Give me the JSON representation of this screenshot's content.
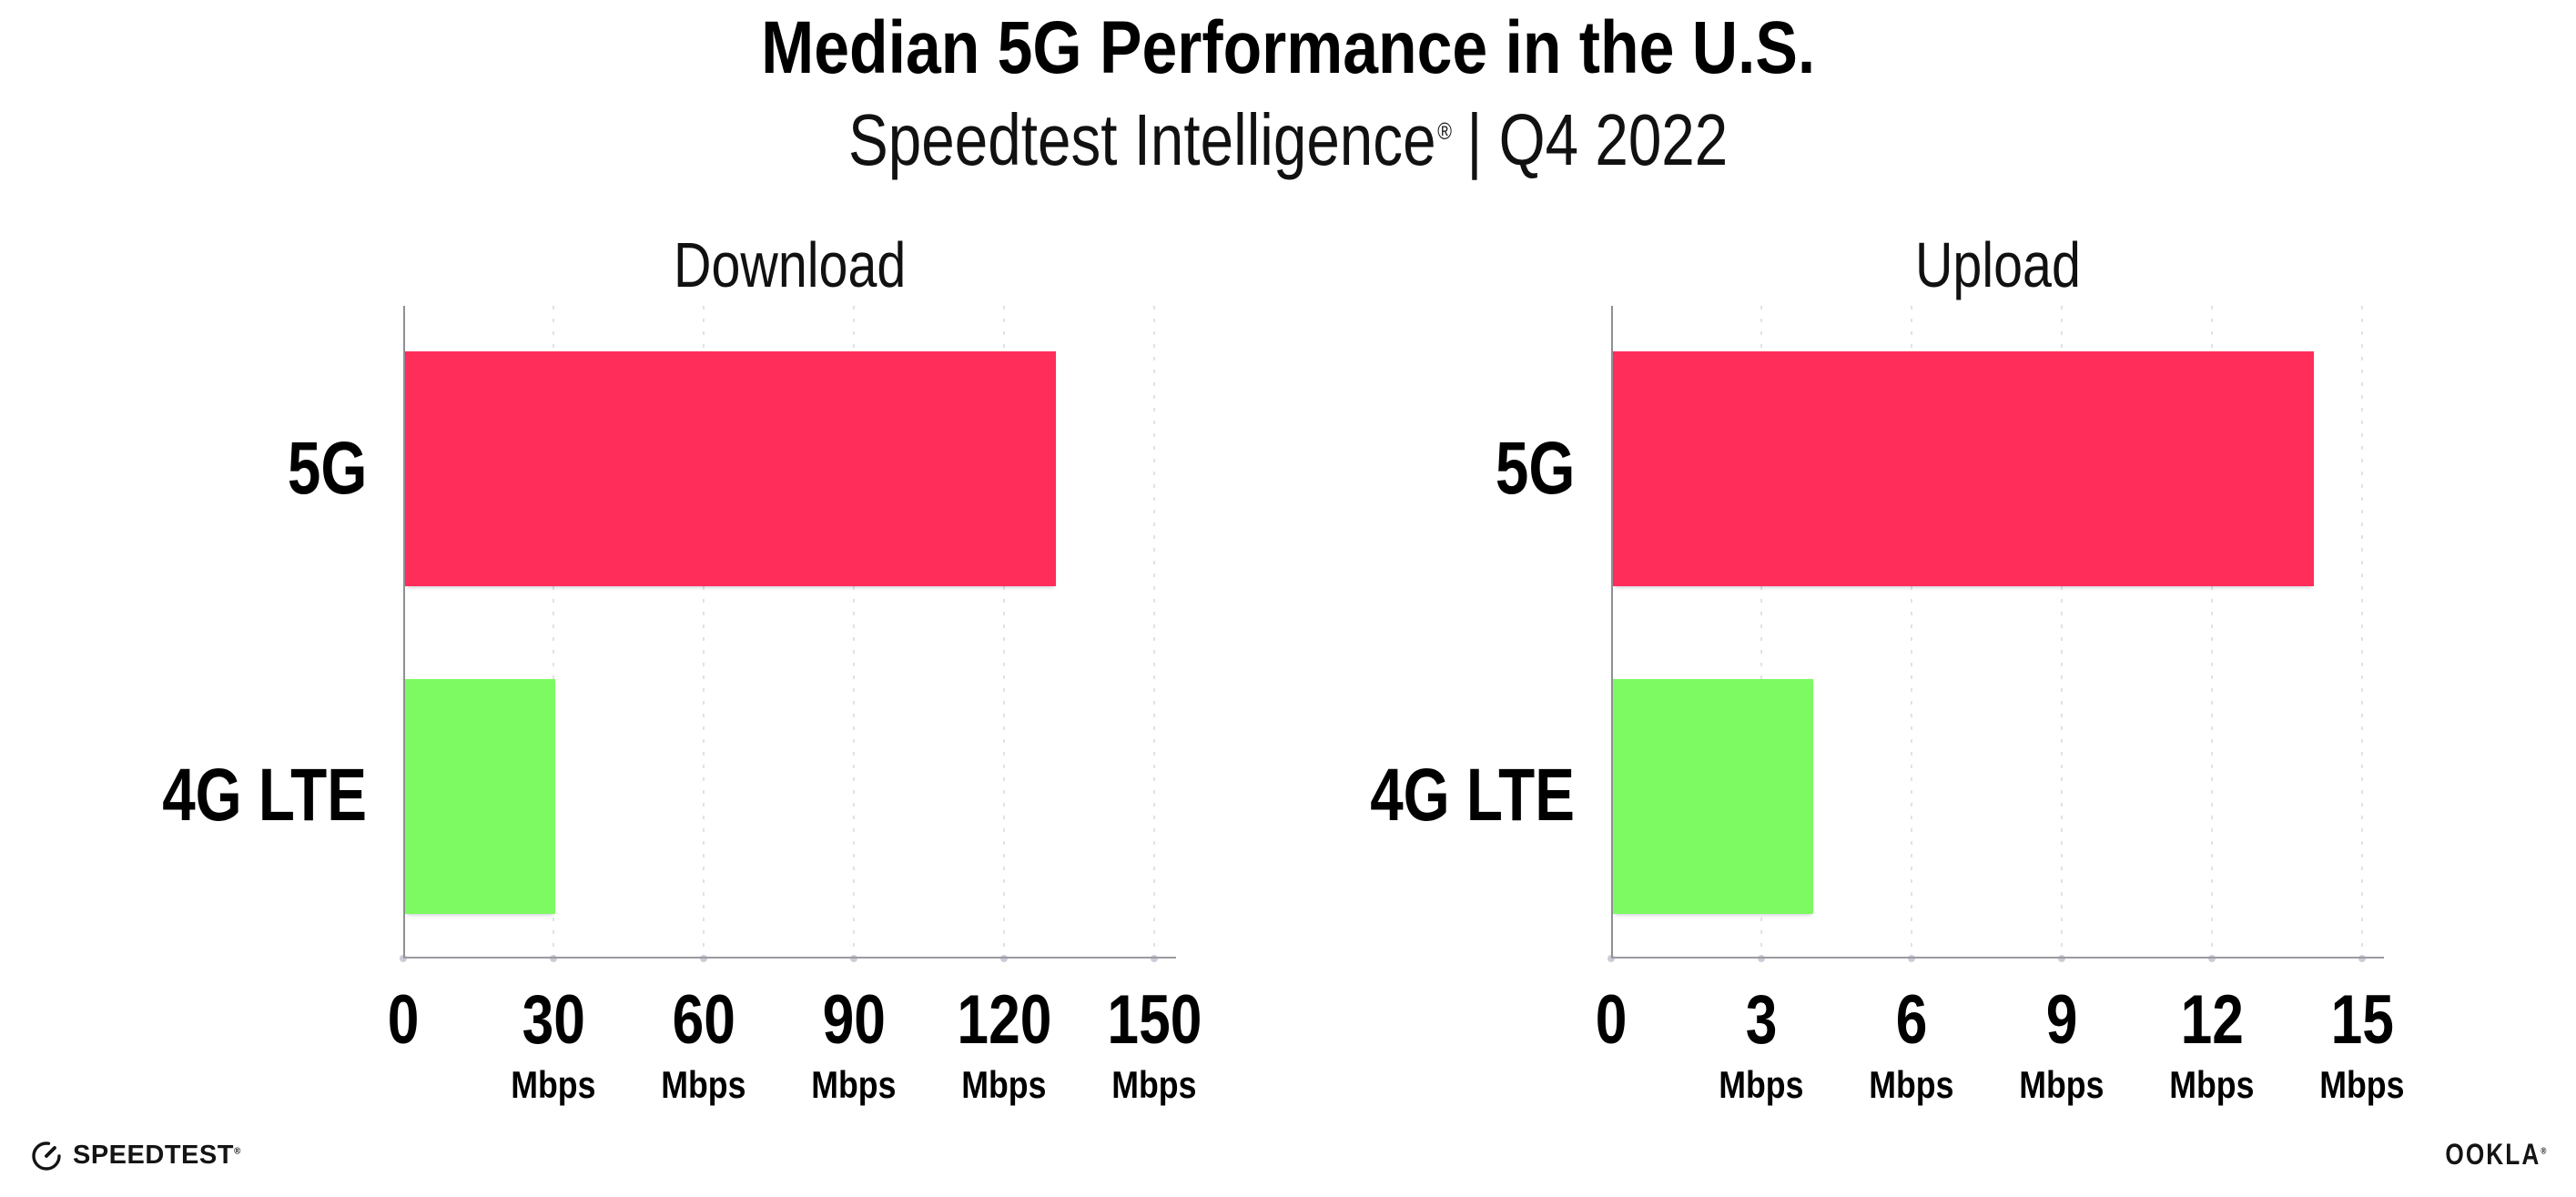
{
  "header": {
    "title": "Median 5G Performance in the U.S.",
    "subtitle_brand": "Speedtest Intelligence",
    "subtitle_reg": "®",
    "subtitle_rest": "| Q4 2022"
  },
  "footer": {
    "speedtest_label": "SPEEDTEST",
    "speedtest_reg": "®",
    "ookla_label": "OOKLA",
    "ookla_reg": "®"
  },
  "colors": {
    "bar_5g": "#ff2d5a",
    "bar_4g_lte": "#7dfa61",
    "axis": "#9b9ba2",
    "gridline": "#e1e1eb",
    "text": "#000000"
  },
  "chart_data": [
    {
      "type": "bar",
      "orientation": "horizontal",
      "title": "Download",
      "categories": [
        "5G",
        "4G LTE"
      ],
      "values": [
        130,
        30
      ],
      "unit": "Mbps",
      "xlim": [
        0,
        150
      ],
      "ticks": [
        0,
        30,
        60,
        90,
        120,
        150
      ],
      "bar_colors": [
        "#ff2d5a",
        "#7dfa61"
      ],
      "grid": "dotted vertical gridlines at ticks",
      "legend": "none"
    },
    {
      "type": "bar",
      "orientation": "horizontal",
      "title": "Upload",
      "categories": [
        "5G",
        "4G LTE"
      ],
      "values": [
        14,
        4
      ],
      "unit": "Mbps",
      "xlim": [
        0,
        15
      ],
      "ticks": [
        0,
        3,
        6,
        9,
        12,
        15
      ],
      "bar_colors": [
        "#ff2d5a",
        "#7dfa61"
      ],
      "grid": "dotted vertical gridlines at ticks",
      "legend": "none"
    }
  ]
}
